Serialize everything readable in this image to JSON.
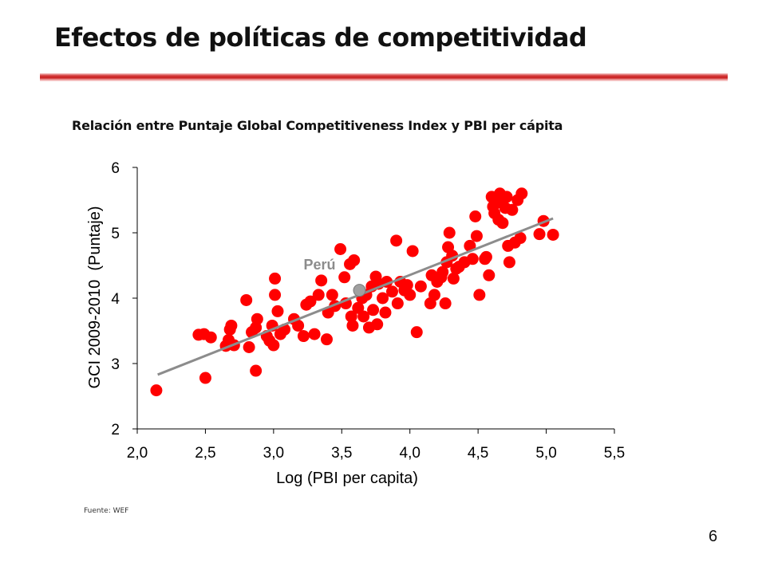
{
  "slide": {
    "title": "Efectos de políticas de competitividad",
    "source": "Fuente: WEF",
    "page_number": "6"
  },
  "colors": {
    "title_rule": "#c81e1e",
    "points": "#ff0000",
    "highlight_point": "#a0a0a0",
    "trendline": "#8c8c8c",
    "highlight_label": "#8c8c8c",
    "axis": "#000000"
  },
  "chart_data": {
    "type": "scatter",
    "title": "Relación entre Puntaje Global Competitiveness Index y PBI per cápita",
    "xlabel": "Log (PBI per capita)",
    "ylabel": "GCI 2009-2010  (Puntaje)",
    "xlim": [
      2.0,
      5.5
    ],
    "ylim": [
      2,
      6
    ],
    "x_ticks": [
      2.0,
      2.5,
      3.0,
      3.5,
      4.0,
      4.5,
      5.0,
      5.5
    ],
    "x_tick_labels": [
      "2,0",
      "2,5",
      "3,0",
      "3,5",
      "4,0",
      "4,5",
      "5,0",
      "5,5"
    ],
    "y_ticks": [
      2,
      3,
      4,
      5,
      6
    ],
    "y_tick_labels": [
      "2",
      "3",
      "4",
      "5",
      "6"
    ],
    "grid": false,
    "legend": "none",
    "trendline": {
      "x": [
        2.15,
        5.05
      ],
      "y": [
        2.83,
        5.22
      ]
    },
    "highlight": {
      "label": "Perú",
      "x": 3.63,
      "y": 4.12
    },
    "points": [
      [
        2.14,
        2.59
      ],
      [
        2.45,
        3.44
      ],
      [
        2.49,
        3.45
      ],
      [
        2.54,
        3.4
      ],
      [
        2.5,
        2.78
      ],
      [
        2.65,
        3.27
      ],
      [
        2.67,
        3.36
      ],
      [
        2.68,
        3.52
      ],
      [
        2.69,
        3.58
      ],
      [
        2.71,
        3.28
      ],
      [
        2.8,
        3.97
      ],
      [
        2.82,
        3.25
      ],
      [
        2.84,
        3.48
      ],
      [
        2.87,
        3.55
      ],
      [
        2.88,
        3.68
      ],
      [
        2.87,
        2.89
      ],
      [
        2.95,
        3.42
      ],
      [
        2.97,
        3.35
      ],
      [
        2.99,
        3.58
      ],
      [
        3.0,
        3.28
      ],
      [
        3.01,
        4.05
      ],
      [
        3.01,
        4.3
      ],
      [
        3.03,
        3.8
      ],
      [
        3.05,
        3.45
      ],
      [
        3.08,
        3.52
      ],
      [
        3.15,
        3.68
      ],
      [
        3.18,
        3.58
      ],
      [
        3.22,
        3.42
      ],
      [
        3.24,
        3.9
      ],
      [
        3.27,
        3.95
      ],
      [
        3.3,
        3.45
      ],
      [
        3.33,
        4.05
      ],
      [
        3.35,
        4.27
      ],
      [
        3.39,
        3.37
      ],
      [
        3.4,
        3.78
      ],
      [
        3.43,
        4.05
      ],
      [
        3.45,
        3.88
      ],
      [
        3.49,
        4.75
      ],
      [
        3.52,
        4.32
      ],
      [
        3.53,
        3.92
      ],
      [
        3.56,
        4.52
      ],
      [
        3.57,
        3.72
      ],
      [
        3.58,
        3.58
      ],
      [
        3.59,
        4.58
      ],
      [
        3.62,
        3.85
      ],
      [
        3.65,
        4.0
      ],
      [
        3.66,
        3.72
      ],
      [
        3.68,
        4.05
      ],
      [
        3.7,
        3.55
      ],
      [
        3.72,
        4.18
      ],
      [
        3.73,
        3.82
      ],
      [
        3.75,
        4.33
      ],
      [
        3.76,
        3.6
      ],
      [
        3.77,
        4.22
      ],
      [
        3.8,
        4.0
      ],
      [
        3.82,
        3.78
      ],
      [
        3.83,
        4.25
      ],
      [
        3.87,
        4.1
      ],
      [
        3.9,
        4.88
      ],
      [
        3.91,
        3.92
      ],
      [
        3.93,
        4.25
      ],
      [
        3.96,
        4.12
      ],
      [
        3.98,
        4.2
      ],
      [
        4.0,
        4.05
      ],
      [
        4.02,
        4.72
      ],
      [
        4.05,
        3.48
      ],
      [
        4.08,
        4.18
      ],
      [
        4.15,
        3.92
      ],
      [
        4.16,
        4.35
      ],
      [
        4.18,
        4.05
      ],
      [
        4.2,
        4.25
      ],
      [
        4.23,
        4.32
      ],
      [
        4.24,
        4.4
      ],
      [
        4.26,
        3.92
      ],
      [
        4.27,
        4.55
      ],
      [
        4.28,
        4.78
      ],
      [
        4.29,
        5.0
      ],
      [
        4.31,
        4.65
      ],
      [
        4.32,
        4.3
      ],
      [
        4.34,
        4.45
      ],
      [
        4.36,
        4.48
      ],
      [
        4.4,
        4.55
      ],
      [
        4.44,
        4.8
      ],
      [
        4.46,
        4.6
      ],
      [
        4.48,
        5.25
      ],
      [
        4.49,
        4.95
      ],
      [
        4.51,
        4.05
      ],
      [
        4.55,
        4.6
      ],
      [
        4.56,
        4.63
      ],
      [
        4.58,
        4.35
      ],
      [
        4.6,
        5.55
      ],
      [
        4.61,
        5.4
      ],
      [
        4.62,
        5.3
      ],
      [
        4.63,
        5.45
      ],
      [
        4.65,
        5.2
      ],
      [
        4.66,
        5.6
      ],
      [
        4.67,
        5.5
      ],
      [
        4.68,
        5.15
      ],
      [
        4.7,
        5.38
      ],
      [
        4.71,
        5.55
      ],
      [
        4.72,
        4.8
      ],
      [
        4.73,
        4.55
      ],
      [
        4.75,
        5.35
      ],
      [
        4.77,
        4.85
      ],
      [
        4.79,
        5.5
      ],
      [
        4.81,
        4.92
      ],
      [
        4.82,
        5.6
      ],
      [
        4.95,
        4.98
      ],
      [
        4.98,
        5.18
      ],
      [
        5.05,
        4.97
      ]
    ]
  }
}
